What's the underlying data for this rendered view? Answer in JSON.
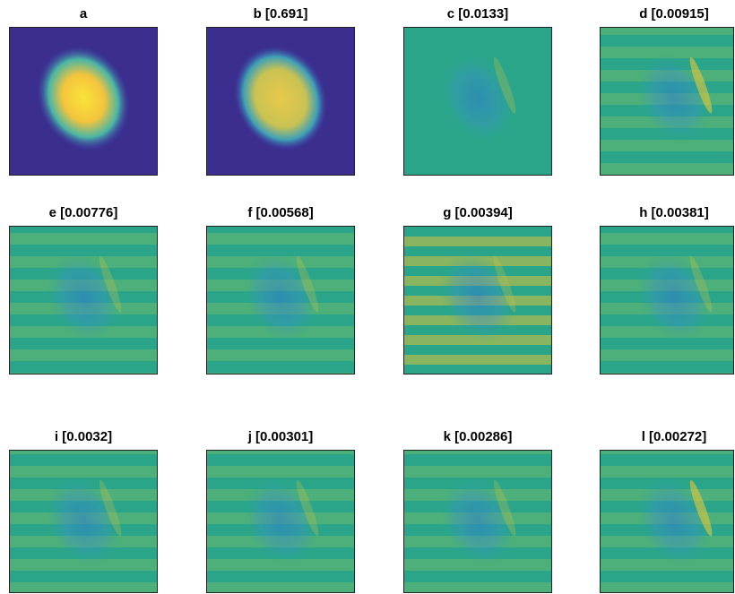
{
  "panels": [
    {
      "title": "a"
    },
    {
      "title": "b [0.691]"
    },
    {
      "title": "c [0.0133]"
    },
    {
      "title": "d [0.00915]"
    },
    {
      "title": "e [0.00776]"
    },
    {
      "title": "f [0.00568]"
    },
    {
      "title": "g [0.00394]"
    },
    {
      "title": "h [0.00381]"
    },
    {
      "title": "i [0.0032]"
    },
    {
      "title": "j [0.00301]"
    },
    {
      "title": "k [0.00286]"
    },
    {
      "title": "l [0.00272]"
    }
  ]
}
